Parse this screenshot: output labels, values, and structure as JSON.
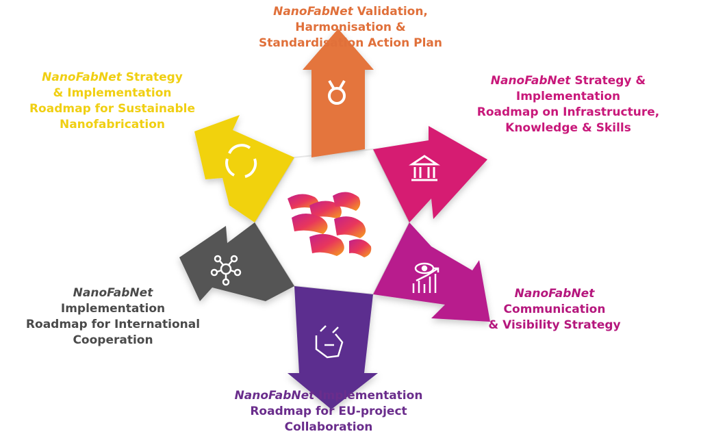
{
  "brand": "NanoFabNet",
  "colors": {
    "orange": "#e4753d",
    "magenta": "#d61a72",
    "purple_pink": "#b81f8d",
    "purple": "#5c2f8f",
    "gray": "#555555",
    "yellow": "#f1d20f"
  },
  "segments": [
    {
      "id": "top",
      "icon": "medal-icon",
      "rest": "Validation,",
      "lines": [
        "Harmonisation &",
        "Standardisation Action Plan"
      ]
    },
    {
      "id": "top-right",
      "icon": "institution-icon",
      "rest": "Strategy &",
      "lines": [
        "Implementation",
        "Roadmap on Infrastructure,",
        "Knowledge & Skills"
      ]
    },
    {
      "id": "right",
      "icon": "chart-eye-icon",
      "rest": "",
      "lines": [
        "Communication",
        "& Visibility Strategy"
      ]
    },
    {
      "id": "bottom",
      "icon": "handshake-icon",
      "rest": "Implementation",
      "lines": [
        "Roadmap for EU-project",
        "Collaboration"
      ]
    },
    {
      "id": "left",
      "icon": "network-icon",
      "rest": "",
      "lines": [
        "Implementation",
        "Roadmap for International",
        "Cooperation"
      ]
    },
    {
      "id": "top-left",
      "icon": "cycle-icon",
      "rest": "Strategy",
      "lines": [
        "& Implementation",
        "Roadmap for Sustainable",
        "Nanofabrication"
      ]
    }
  ],
  "center_logo": "nanofabnet-logo"
}
